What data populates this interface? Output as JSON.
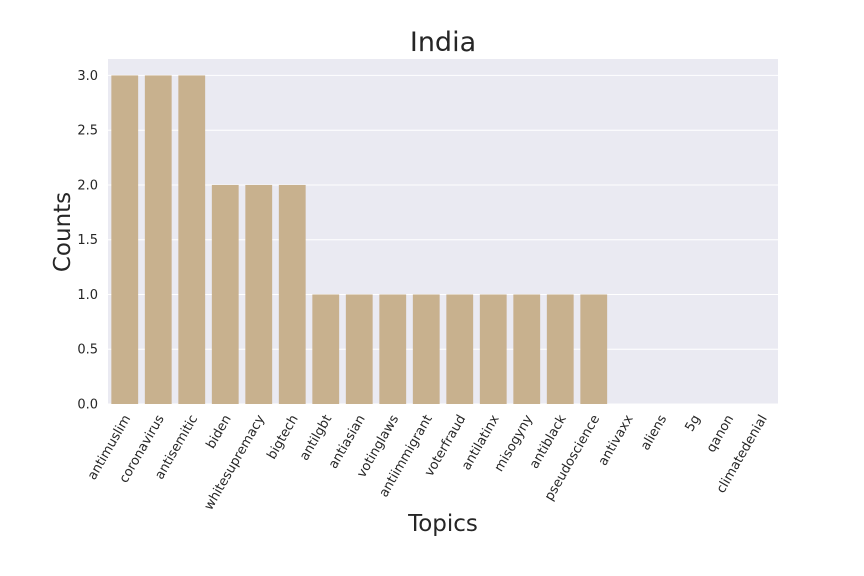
{
  "chart_data": {
    "type": "bar",
    "title": "India",
    "xlabel": "Topics",
    "ylabel": "Counts",
    "categories": [
      "antimuslim",
      "coronavirus",
      "antisemitic",
      "biden",
      "whitesupremacy",
      "bigtech",
      "antilgbt",
      "antiasian",
      "votinglaws",
      "antiimmigrant",
      "voterfraud",
      "antilatinx",
      "misogyny",
      "antiblack",
      "pseudoscience",
      "antivaxx",
      "aliens",
      "5g",
      "qanon",
      "climatedenial"
    ],
    "values": [
      3,
      3,
      3,
      2,
      2,
      2,
      1,
      1,
      1,
      1,
      1,
      1,
      1,
      1,
      1,
      0,
      0,
      0,
      0,
      0
    ],
    "yticks": [
      "0.0",
      "0.5",
      "1.0",
      "1.5",
      "2.0",
      "2.5",
      "3.0"
    ],
    "ylim": [
      0,
      3.15
    ],
    "grid": true,
    "bar_color": "#c8b18e",
    "background_color": "#eaeaf2"
  }
}
